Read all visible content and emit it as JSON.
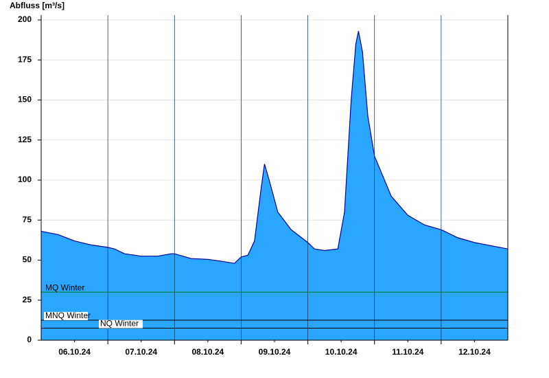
{
  "chart_data": {
    "type": "area",
    "title": "Abfluss [m³/s]",
    "xlim": [
      0,
      7
    ],
    "xticks": [
      {
        "value": 0.5,
        "label": "06.10.24"
      },
      {
        "value": 1.5,
        "label": "07.10.24"
      },
      {
        "value": 2.5,
        "label": "08.10.24"
      },
      {
        "value": 3.5,
        "label": "09.10.24"
      },
      {
        "value": 4.5,
        "label": "10.10.24"
      },
      {
        "value": 5.5,
        "label": "11.10.24"
      },
      {
        "value": 6.5,
        "label": "12.10.24"
      }
    ],
    "xgrid": [
      1,
      2,
      3,
      4,
      5,
      6
    ],
    "ylim": [
      0,
      203
    ],
    "yticks": [
      0,
      25,
      50,
      75,
      100,
      125,
      150,
      175,
      200
    ],
    "grid": true,
    "x": [
      0,
      0.25,
      0.5,
      0.75,
      1.0,
      1.1,
      1.25,
      1.5,
      1.75,
      1.95,
      2.0,
      2.25,
      2.5,
      2.75,
      2.9,
      3.0,
      3.1,
      3.2,
      3.3,
      3.35,
      3.42,
      3.55,
      3.75,
      4.0,
      4.1,
      4.25,
      4.45,
      4.55,
      4.65,
      4.72,
      4.76,
      4.82,
      4.9,
      5.0,
      5.25,
      5.5,
      5.75,
      6.0,
      6.25,
      6.5,
      6.75,
      7.0
    ],
    "series": [
      {
        "color": "#2ba6ff",
        "line_color": "#0000a0",
        "values": [
          68,
          66,
          62,
          59.5,
          58,
          57,
          54,
          52.5,
          52.5,
          54,
          54,
          51,
          50.5,
          49,
          48,
          52,
          53,
          62,
          95,
          110,
          100,
          80,
          69,
          61,
          57,
          56,
          57,
          80,
          150,
          185,
          193,
          180,
          140,
          115,
          90,
          78,
          72,
          69,
          64,
          61,
          59,
          57
        ]
      }
    ],
    "reference_lines": [
      {
        "label": "MQ Winter",
        "value": 30,
        "color": "#008000"
      },
      {
        "label": "MNQ Winter",
        "value": 12.5,
        "color": "#000000"
      },
      {
        "label": "NQ Winter",
        "value": 7.5,
        "color": "#000000"
      }
    ]
  }
}
